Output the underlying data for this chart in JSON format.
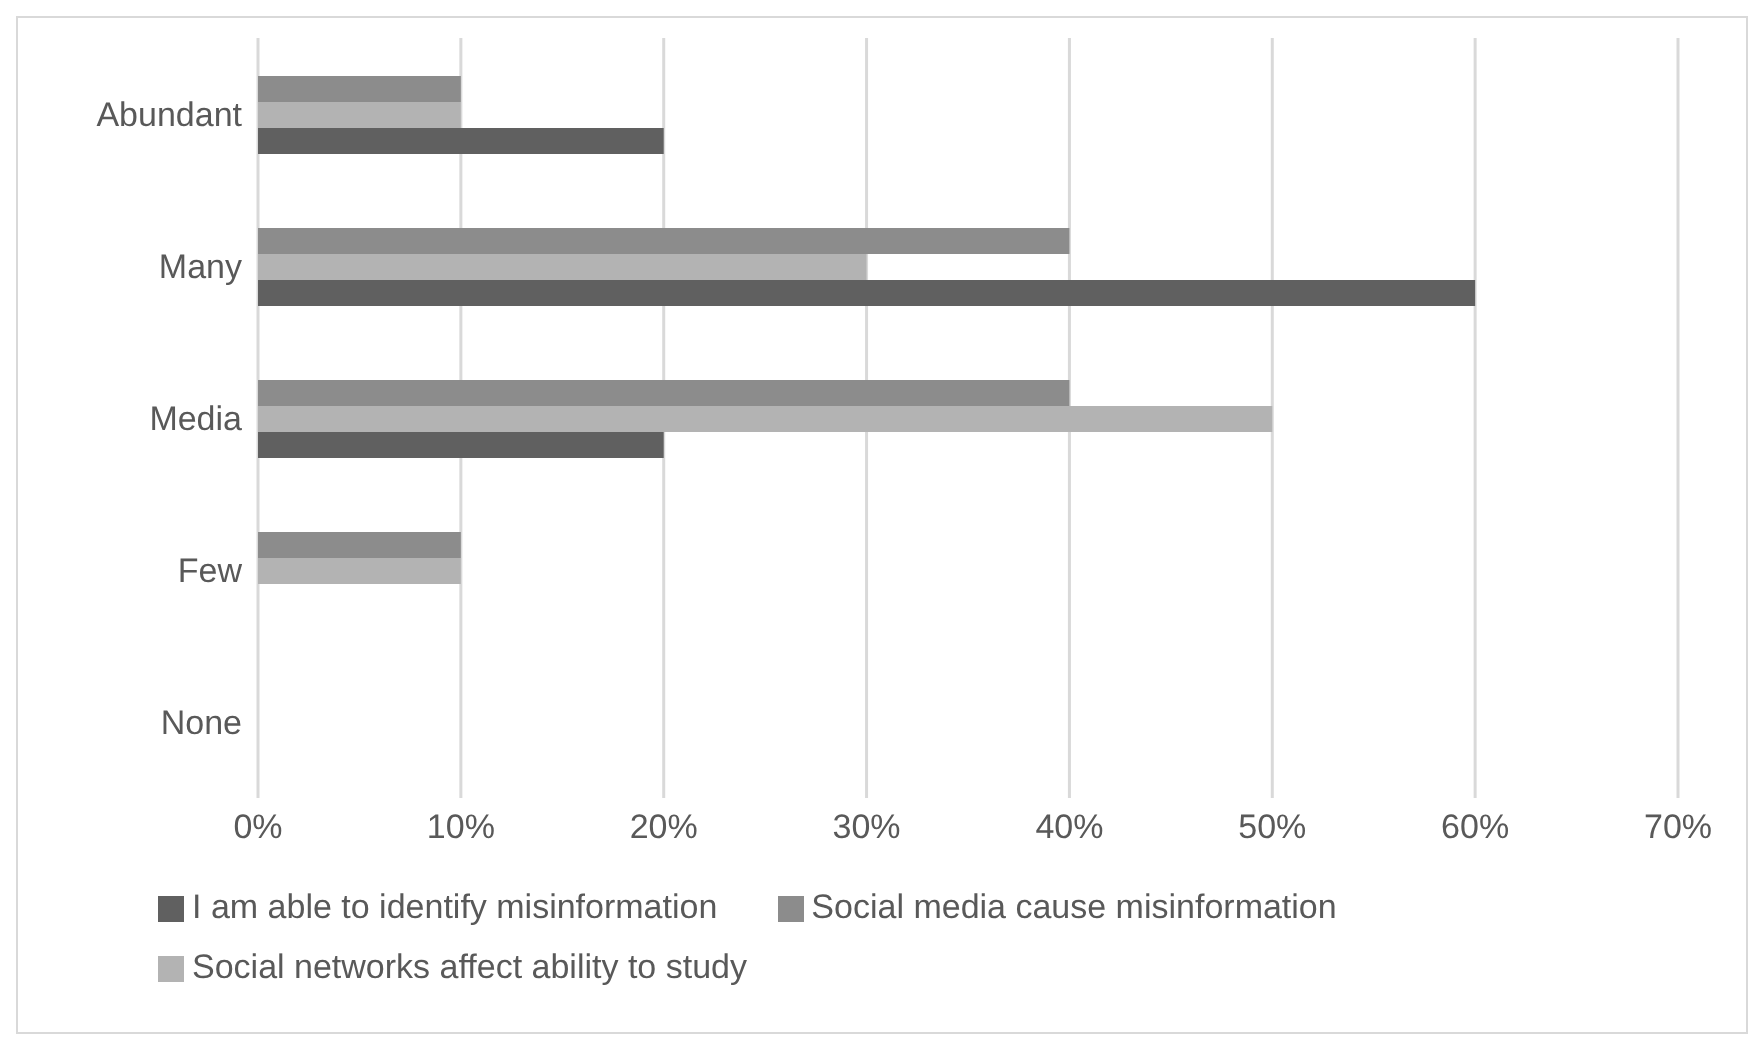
{
  "chart_data": {
    "type": "bar",
    "orientation": "horizontal",
    "categories": [
      "Abundant",
      "Many",
      "Media",
      "Few",
      "None"
    ],
    "series": [
      {
        "name": "Social media cause misinformation",
        "color": "#8c8c8c",
        "values": [
          10,
          40,
          40,
          10,
          0
        ]
      },
      {
        "name": "Social networks affect ability to study",
        "color": "#b3b3b3",
        "values": [
          10,
          30,
          50,
          10,
          0
        ]
      },
      {
        "name": "I am able to identify misinformation",
        "color": "#606060",
        "values": [
          20,
          60,
          20,
          0,
          0
        ]
      }
    ],
    "xlim": [
      0,
      70
    ],
    "xticks": [
      {
        "value": 0,
        "label": "0%"
      },
      {
        "value": 10,
        "label": "10%"
      },
      {
        "value": 20,
        "label": "20%"
      },
      {
        "value": 30,
        "label": "30%"
      },
      {
        "value": 40,
        "label": "40%"
      },
      {
        "value": 50,
        "label": "50%"
      },
      {
        "value": 60,
        "label": "60%"
      },
      {
        "value": 70,
        "label": "70%"
      }
    ],
    "grid": "x",
    "legend": "bottom"
  }
}
